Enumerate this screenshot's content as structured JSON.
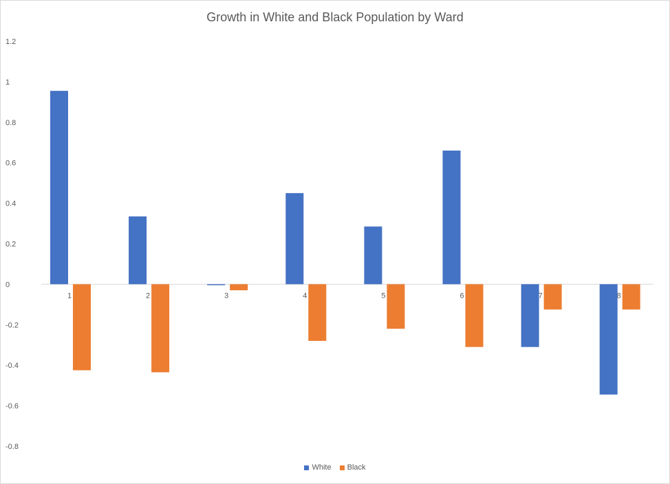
{
  "chart_data": {
    "type": "bar",
    "title": "Growth in White and Black Population by Ward",
    "xlabel": "",
    "ylabel": "",
    "categories": [
      "1",
      "2",
      "3",
      "4",
      "5",
      "6",
      "7",
      "8"
    ],
    "series": [
      {
        "name": "White",
        "color": "#4472c4",
        "values": [
          0.955,
          0.335,
          -0.005,
          0.45,
          0.285,
          0.66,
          -0.31,
          -0.545
        ]
      },
      {
        "name": "Black",
        "color": "#ed7d31",
        "values": [
          -0.425,
          -0.435,
          -0.03,
          -0.28,
          -0.22,
          -0.31,
          -0.125,
          -0.125
        ]
      }
    ],
    "yticks": [
      "1.2",
      "1",
      "0.8",
      "0.6",
      "0.4",
      "0.2",
      "0",
      "-0.2",
      "-0.4",
      "-0.6",
      "-0.8"
    ],
    "ylim": [
      -0.8,
      1.2
    ],
    "grid": false,
    "legend_position": "bottom"
  }
}
